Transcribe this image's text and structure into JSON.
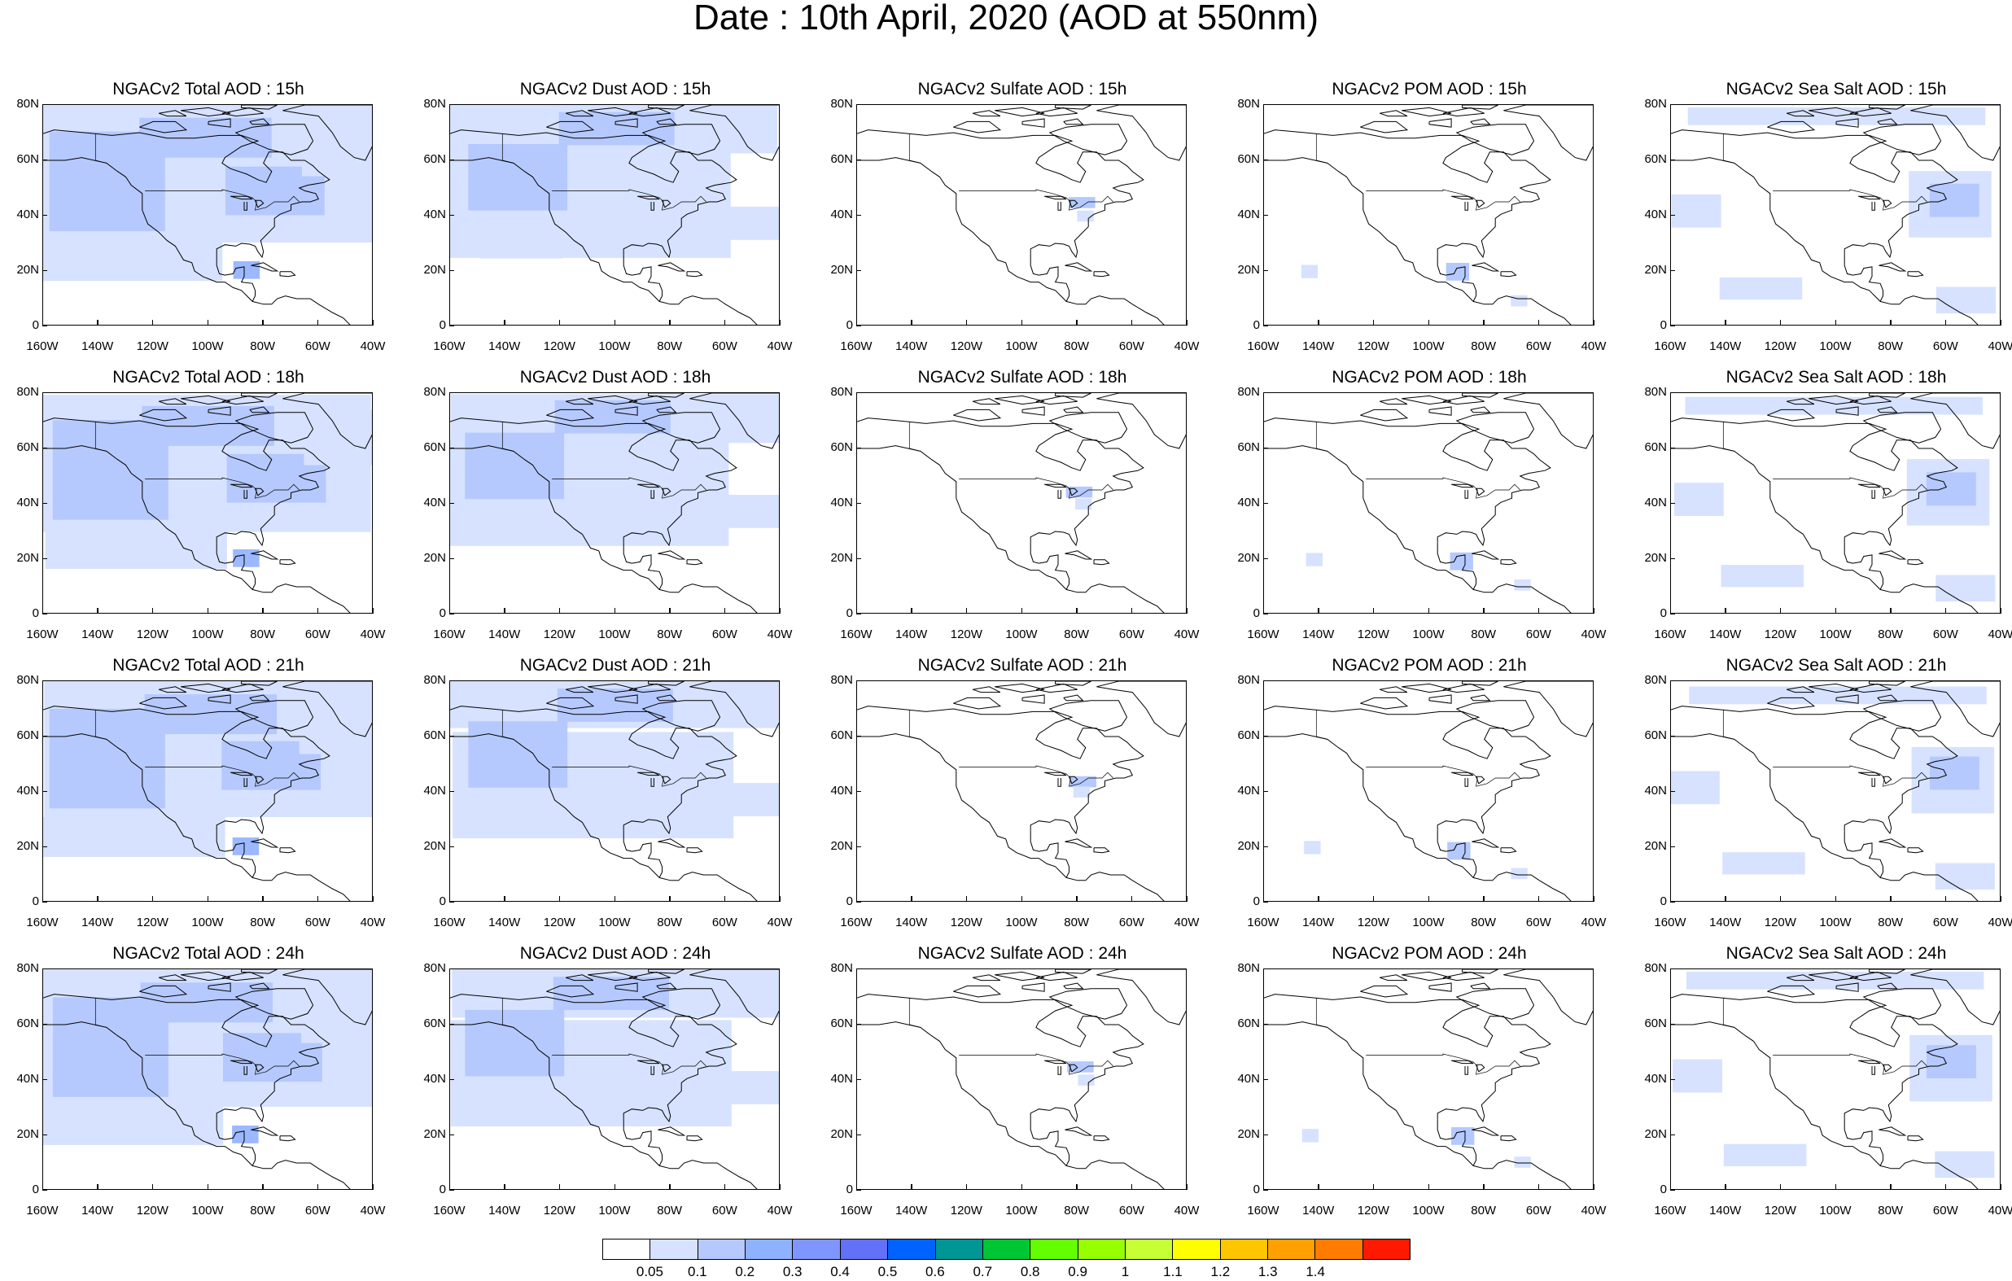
{
  "title": "Date : 10th April, 2020 (AOD at 550nm)",
  "lat_labels": [
    "0",
    "20N",
    "40N",
    "60N",
    "80N"
  ],
  "lon_labels": [
    "160W",
    "140W",
    "120W",
    "100W",
    "80W",
    "60W",
    "40W"
  ],
  "panels": [
    {
      "title": "NGACv2 Total AOD : 15h",
      "species": "total",
      "hour": "15h"
    },
    {
      "title": "NGACv2 Dust AOD : 15h",
      "species": "dust",
      "hour": "15h"
    },
    {
      "title": "NGACv2 Sulfate AOD : 15h",
      "species": "sulfate",
      "hour": "15h"
    },
    {
      "title": "NGACv2 POM AOD : 15h",
      "species": "pom",
      "hour": "15h"
    },
    {
      "title": "NGACv2 Sea Salt AOD : 15h",
      "species": "seasalt",
      "hour": "15h"
    },
    {
      "title": "NGACv2 Total AOD : 18h",
      "species": "total",
      "hour": "18h"
    },
    {
      "title": "NGACv2 Dust AOD : 18h",
      "species": "dust",
      "hour": "18h"
    },
    {
      "title": "NGACv2 Sulfate AOD : 18h",
      "species": "sulfate",
      "hour": "18h"
    },
    {
      "title": "NGACv2 POM AOD : 18h",
      "species": "pom",
      "hour": "18h"
    },
    {
      "title": "NGACv2 Sea Salt AOD : 18h",
      "species": "seasalt",
      "hour": "18h"
    },
    {
      "title": "NGACv2 Total AOD : 21h",
      "species": "total",
      "hour": "21h"
    },
    {
      "title": "NGACv2 Dust AOD : 21h",
      "species": "dust",
      "hour": "21h"
    },
    {
      "title": "NGACv2 Sulfate AOD : 21h",
      "species": "sulfate",
      "hour": "21h"
    },
    {
      "title": "NGACv2 POM AOD : 21h",
      "species": "pom",
      "hour": "21h"
    },
    {
      "title": "NGACv2 Sea Salt AOD : 21h",
      "species": "seasalt",
      "hour": "21h"
    },
    {
      "title": "NGACv2 Total AOD : 24h",
      "species": "total",
      "hour": "24h"
    },
    {
      "title": "NGACv2 Dust AOD : 24h",
      "species": "dust",
      "hour": "24h"
    },
    {
      "title": "NGACv2 Sulfate AOD : 24h",
      "species": "sulfate",
      "hour": "24h"
    },
    {
      "title": "NGACv2 POM AOD : 24h",
      "species": "pom",
      "hour": "24h"
    },
    {
      "title": "NGACv2 Sea Salt  AOD : 24h",
      "species": "seasalt",
      "hour": "24h"
    }
  ],
  "colorbar": {
    "labels": [
      "0.05",
      "0.1",
      "0.2",
      "0.3",
      "0.4",
      "0.5",
      "0.6",
      "0.7",
      "0.8",
      "0.9",
      "1",
      "1.1",
      "1.2",
      "1.3",
      "1.4"
    ],
    "colors": [
      "#ffffff",
      "#d6e2ff",
      "#b5c9ff",
      "#8eb2ff",
      "#7f96ff",
      "#6370f8",
      "#0063ff",
      "#009696",
      "#00c633",
      "#63ff00",
      "#96ff00",
      "#c6ff33",
      "#ffff00",
      "#ffc600",
      "#ffa000",
      "#ff7c00",
      "#ff1900"
    ]
  }
}
